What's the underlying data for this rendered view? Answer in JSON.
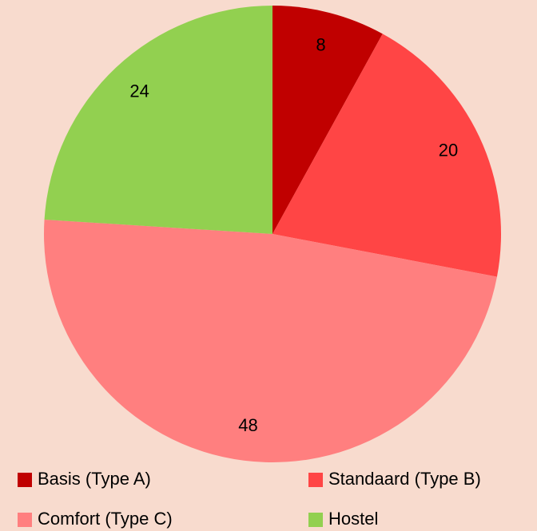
{
  "chart_data": {
    "type": "pie",
    "categories": [
      "Basis (Type A)",
      "Standaard (Type B)",
      "Comfort (Type C)",
      "Hostel"
    ],
    "values": [
      8,
      20,
      48,
      24
    ],
    "colors": [
      "#c00000",
      "#ff4545",
      "#ff7f7f",
      "#92d050"
    ],
    "legend": "bottom"
  }
}
